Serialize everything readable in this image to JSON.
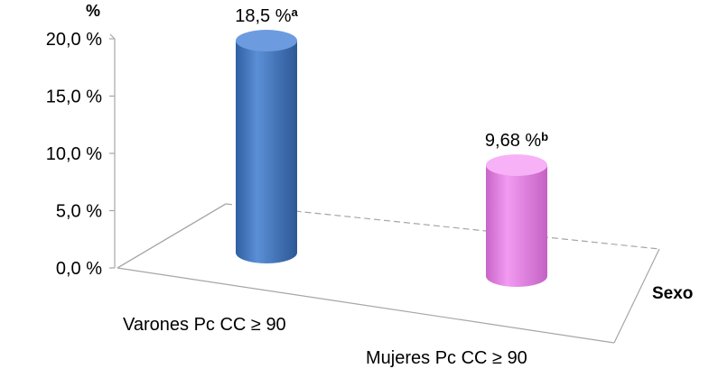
{
  "chart_data": {
    "type": "bar",
    "title": "",
    "ylabel": "%",
    "xlabel": "Sexo",
    "ylim": [
      0,
      20
    ],
    "yticks": [
      0,
      5,
      10,
      15,
      20
    ],
    "ytick_labels": [
      "0,0 %",
      "5,0 %",
      "10,0 %",
      "15,0 %",
      "20,0 %"
    ],
    "categories": [
      "Varones Pc CC ≥ 90",
      "Mujeres Pc CC ≥ 90"
    ],
    "values": [
      18.5,
      9.68
    ],
    "data_labels": [
      "18,5 %",
      "9,68 %"
    ],
    "data_label_superscripts": [
      "a",
      "b"
    ],
    "colors": [
      "#4f7fc6",
      "#e88ae8"
    ],
    "bar_shape": "cylinder",
    "grid": false
  }
}
